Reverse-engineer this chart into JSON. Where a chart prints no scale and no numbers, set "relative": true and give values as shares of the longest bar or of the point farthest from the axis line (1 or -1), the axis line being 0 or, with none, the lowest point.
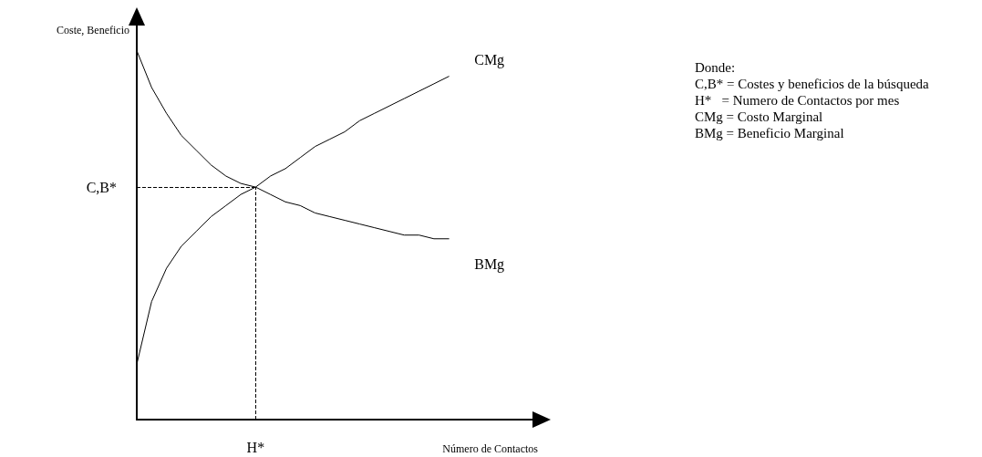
{
  "chart_data": {
    "type": "line",
    "relative": true,
    "xlabel": "Número de Contactos",
    "ylabel": "Coste, Beneficio",
    "categories": [
      null,
      null,
      null,
      null,
      null,
      null,
      null,
      null,
      null,
      null,
      null,
      null,
      null,
      null,
      null,
      null,
      null,
      null,
      null,
      null,
      null,
      null,
      null,
      null,
      null,
      null,
      null,
      null
    ],
    "series": [
      {
        "name": "CMg",
        "color": "#000000",
        "values": [
          0.15,
          0.32,
          0.41,
          0.47,
          0.51,
          0.55,
          0.58,
          0.61,
          0.63,
          0.66,
          0.68,
          0.71,
          0.74,
          0.76,
          0.78,
          0.81,
          0.83,
          0.85,
          0.87,
          0.89,
          0.91,
          0.93,
          null,
          null,
          null,
          null,
          null,
          null
        ]
      },
      {
        "name": "BMg",
        "color": "#000000",
        "values": [
          1.0,
          0.9,
          0.83,
          0.77,
          0.73,
          0.69,
          0.66,
          0.64,
          0.63,
          0.61,
          0.59,
          0.58,
          0.56,
          0.55,
          0.54,
          0.53,
          0.52,
          0.51,
          0.5,
          0.5,
          0.49,
          0.49,
          null,
          null,
          null,
          null,
          null,
          null
        ]
      }
    ],
    "ref_lines": [
      {
        "axis": "y",
        "value": 0.63,
        "label": "C,B*",
        "line_style": "dashed"
      }
    ],
    "annotations": [
      "H*",
      "Donde:",
      "C,B* = Costes y beneficios de la búsqueda",
      "H*   = Numero de Contactos por mes",
      "CMg = Costo Marginal",
      "BMg = Beneficio Marginal"
    ],
    "legend": false,
    "grid": false,
    "marker": "none",
    "line_style": "solid"
  }
}
